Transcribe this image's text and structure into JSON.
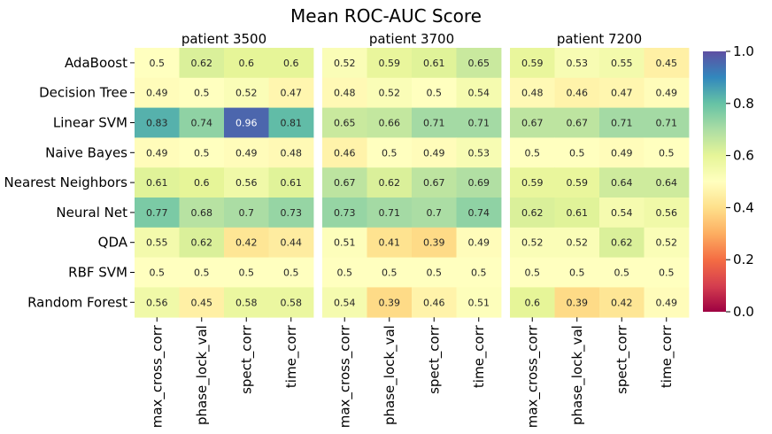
{
  "chart_data": {
    "type": "heatmap",
    "title": "Mean ROC-AUC Score",
    "rows": [
      "AdaBoost",
      "Decision Tree",
      "Linear SVM",
      "Naive Bayes",
      "Nearest Neighbors",
      "Neural Net",
      "QDA",
      "RBF SVM",
      "Random Forest"
    ],
    "columns": [
      "max_cross_corr",
      "phase_lock_val",
      "spect_corr",
      "time_corr"
    ],
    "panels": [
      {
        "title": "patient 3500",
        "values": [
          [
            0.5,
            0.62,
            0.6,
            0.6
          ],
          [
            0.49,
            0.5,
            0.52,
            0.47
          ],
          [
            0.83,
            0.74,
            0.96,
            0.81
          ],
          [
            0.49,
            0.5,
            0.49,
            0.48
          ],
          [
            0.61,
            0.6,
            0.56,
            0.61
          ],
          [
            0.77,
            0.68,
            0.7,
            0.73
          ],
          [
            0.55,
            0.62,
            0.42,
            0.44
          ],
          [
            0.5,
            0.5,
            0.5,
            0.5
          ],
          [
            0.56,
            0.45,
            0.58,
            0.58
          ]
        ]
      },
      {
        "title": "patient 3700",
        "values": [
          [
            0.52,
            0.59,
            0.61,
            0.65
          ],
          [
            0.48,
            0.52,
            0.5,
            0.54
          ],
          [
            0.65,
            0.66,
            0.71,
            0.71
          ],
          [
            0.46,
            0.5,
            0.49,
            0.53
          ],
          [
            0.67,
            0.62,
            0.67,
            0.69
          ],
          [
            0.73,
            0.71,
            0.7,
            0.74
          ],
          [
            0.51,
            0.41,
            0.39,
            0.49
          ],
          [
            0.5,
            0.5,
            0.5,
            0.5
          ],
          [
            0.54,
            0.39,
            0.46,
            0.51
          ]
        ]
      },
      {
        "title": "patient 7200",
        "values": [
          [
            0.59,
            0.53,
            0.55,
            0.45
          ],
          [
            0.48,
            0.46,
            0.47,
            0.49
          ],
          [
            0.67,
            0.67,
            0.71,
            0.71
          ],
          [
            0.5,
            0.5,
            0.49,
            0.5
          ],
          [
            0.59,
            0.59,
            0.64,
            0.64
          ],
          [
            0.62,
            0.61,
            0.54,
            0.56
          ],
          [
            0.52,
            0.52,
            0.62,
            0.52
          ],
          [
            0.5,
            0.5,
            0.5,
            0.5
          ],
          [
            0.6,
            0.39,
            0.42,
            0.49
          ]
        ]
      }
    ],
    "colorbar": {
      "min": 0.0,
      "max": 1.0,
      "ticks": [
        "0.0",
        "0.2",
        "0.4",
        "0.6",
        "0.8",
        "1.0"
      ],
      "colormap": "Spectral",
      "colormap_stops": [
        "#9e0142",
        "#d53e4f",
        "#f46d43",
        "#fdae61",
        "#fee08b",
        "#ffffbf",
        "#e6f598",
        "#abdda4",
        "#66c2a5",
        "#3288bd",
        "#5e4fa2"
      ]
    }
  }
}
